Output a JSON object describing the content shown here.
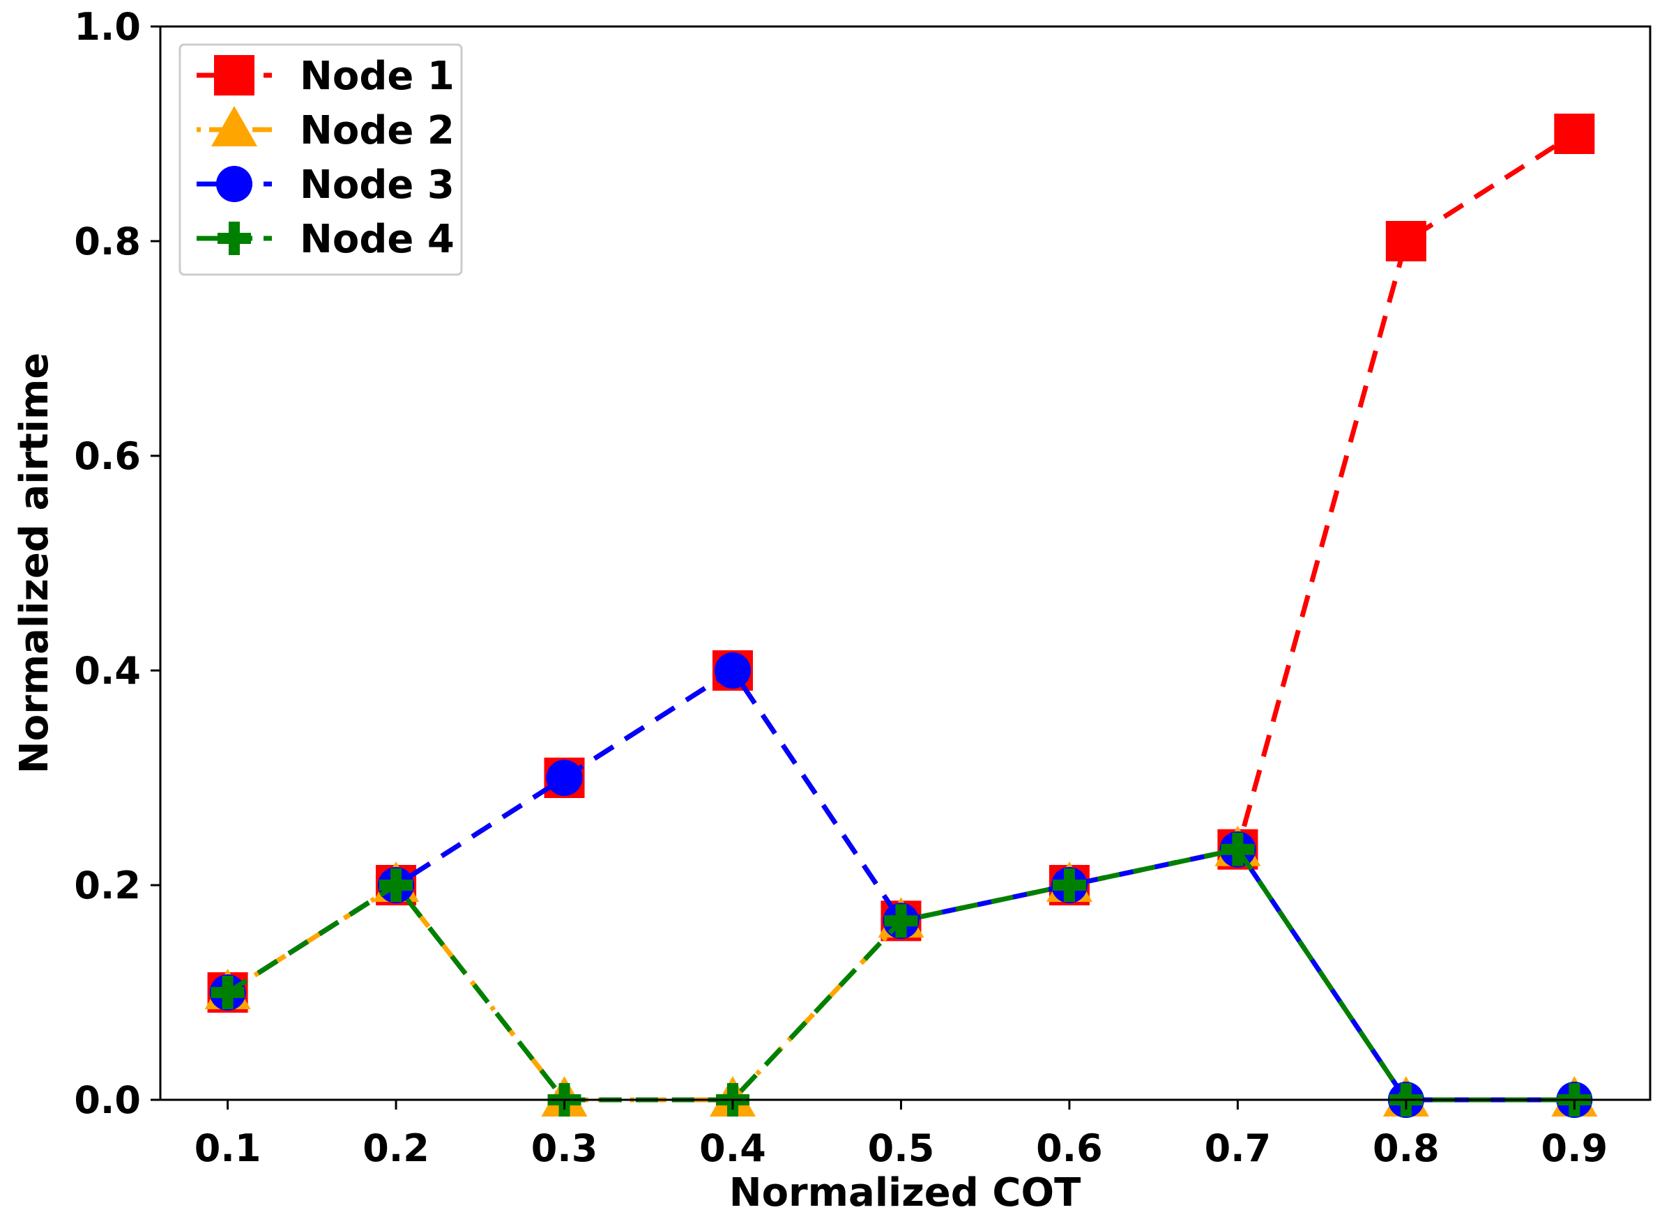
{
  "chart_data": {
    "type": "line",
    "title": "",
    "xlabel": "Normalized COT",
    "ylabel": "Normalized airtime",
    "x": [
      0.1,
      0.2,
      0.3,
      0.4,
      0.5,
      0.6,
      0.7,
      0.8,
      0.9
    ],
    "x_tick_labels": [
      "0.1",
      "0.2",
      "0.3",
      "0.4",
      "0.5",
      "0.6",
      "0.7",
      "0.8",
      "0.9"
    ],
    "y_ticks": [
      0.0,
      0.2,
      0.4,
      0.6,
      0.8,
      1.0
    ],
    "y_tick_labels": [
      "0.0",
      "0.2",
      "0.4",
      "0.6",
      "0.8",
      "1.0"
    ],
    "xlim": [
      0.06,
      0.945
    ],
    "ylim": [
      0.0,
      1.0
    ],
    "grid": false,
    "legend_position": "top-left",
    "series": [
      {
        "name": "Node 1",
        "color": "#ff0000",
        "marker": "square",
        "dash": "dash",
        "values": [
          0.1,
          0.2,
          0.3,
          0.4,
          0.1667,
          0.2,
          0.2333,
          0.8,
          0.9
        ]
      },
      {
        "name": "Node 2",
        "color": "#ffa500",
        "marker": "triangle",
        "dash": "dashdot",
        "values": [
          0.1,
          0.2,
          0.0,
          0.0,
          0.1667,
          0.2,
          0.2333,
          0.0,
          0.0
        ]
      },
      {
        "name": "Node 3",
        "color": "#0000ff",
        "marker": "circle",
        "dash": "dash",
        "values": [
          0.1,
          0.2,
          0.3,
          0.4,
          0.1667,
          0.2,
          0.2333,
          0.0,
          0.0
        ]
      },
      {
        "name": "Node 4",
        "color": "#008000",
        "marker": "plus",
        "dash": "dash",
        "values": [
          0.1,
          0.2,
          0.0,
          0.0,
          0.1667,
          0.2,
          0.2333,
          0.0,
          0.0
        ]
      }
    ]
  }
}
